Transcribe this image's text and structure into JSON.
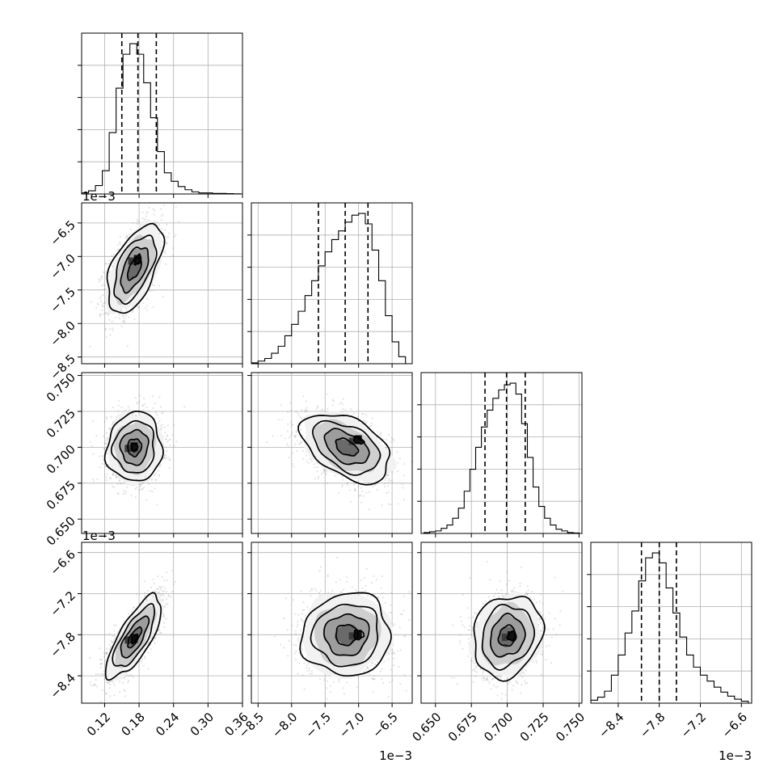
{
  "chart_data": {
    "type": "scatter",
    "variant": "corner",
    "grid": true,
    "quantile_lines": "dashed",
    "parameters": [
      {
        "range": [
          0.08,
          0.36
        ],
        "ticks": [
          0.12,
          0.18,
          0.24,
          0.3,
          0.36
        ],
        "tick_labels": [
          "0.12",
          "0.18",
          "0.24",
          "0.30",
          "0.36"
        ],
        "offset_label": ""
      },
      {
        "range": [
          -8.6,
          -6.2
        ],
        "ticks": [
          -8.5,
          -8.0,
          -7.5,
          -7.0,
          -6.5
        ],
        "tick_labels": [
          "−8.5",
          "−8.0",
          "−7.5",
          "−7.0",
          "−6.5"
        ],
        "offset_label": "1e−3"
      },
      {
        "range": [
          0.64,
          0.752
        ],
        "ticks": [
          0.65,
          0.675,
          0.7,
          0.725,
          0.75
        ],
        "tick_labels": [
          "0.650",
          "0.675",
          "0.700",
          "0.725",
          "0.750"
        ],
        "offset_label": ""
      },
      {
        "range": [
          -8.8,
          -6.45
        ],
        "ticks": [
          -8.4,
          -7.8,
          -7.2,
          -6.6
        ],
        "tick_labels": [
          "−8.4",
          "−7.8",
          "−7.2",
          "−6.6"
        ],
        "offset_label": "1e−3"
      }
    ],
    "marginals": [
      {
        "quantiles": [
          0.15,
          0.178,
          0.21
        ],
        "bin_edges": [
          0.08,
          0.092,
          0.104,
          0.116,
          0.128,
          0.14,
          0.152,
          0.164,
          0.176,
          0.188,
          0.2,
          0.212,
          0.224,
          0.236,
          0.248,
          0.26,
          0.272,
          0.284,
          0.296,
          0.308,
          0.32,
          0.332,
          0.344,
          0.356
        ],
        "counts": [
          1,
          3,
          8,
          22,
          58,
          100,
          132,
          142,
          132,
          105,
          72,
          40,
          20,
          12,
          7,
          4,
          2,
          1,
          1,
          0.5,
          0.5,
          0.3,
          0.2
        ]
      },
      {
        "quantiles": [
          -7.6,
          -7.2,
          -6.86
        ],
        "bin_edges": [
          -8.6,
          -8.5,
          -8.4,
          -8.3,
          -8.2,
          -8.1,
          -8.0,
          -7.9,
          -7.8,
          -7.7,
          -7.6,
          -7.5,
          -7.4,
          -7.3,
          -7.2,
          -7.1,
          -7.0,
          -6.9,
          -6.8,
          -6.7,
          -6.6,
          -6.5,
          -6.4,
          -6.3
        ],
        "counts": [
          1,
          3,
          6,
          12,
          20,
          32,
          45,
          60,
          78,
          95,
          112,
          128,
          142,
          152,
          162,
          170,
          172,
          160,
          130,
          95,
          55,
          25,
          8
        ]
      },
      {
        "quantiles": [
          0.6845,
          0.6995,
          0.7125
        ],
        "bin_edges": [
          0.642,
          0.646,
          0.65,
          0.654,
          0.658,
          0.662,
          0.666,
          0.67,
          0.674,
          0.678,
          0.682,
          0.686,
          0.69,
          0.694,
          0.698,
          0.702,
          0.706,
          0.71,
          0.714,
          0.718,
          0.722,
          0.726,
          0.73,
          0.734,
          0.738,
          0.742,
          0.746,
          0.75
        ],
        "counts": [
          1,
          2,
          3,
          6,
          10,
          18,
          30,
          50,
          76,
          102,
          126,
          146,
          160,
          170,
          176,
          178,
          165,
          130,
          90,
          55,
          32,
          18,
          10,
          5,
          3,
          1,
          0.5
        ]
      },
      {
        "quantiles": [
          -8.06,
          -7.8,
          -7.55
        ],
        "bin_edges": [
          -8.8,
          -8.7,
          -8.6,
          -8.5,
          -8.4,
          -8.3,
          -8.2,
          -8.1,
          -8.0,
          -7.9,
          -7.8,
          -7.7,
          -7.6,
          -7.5,
          -7.4,
          -7.3,
          -7.2,
          -7.1,
          -7.0,
          -6.9,
          -6.8,
          -6.7,
          -6.6,
          -6.5
        ],
        "counts": [
          3,
          6,
          12,
          28,
          48,
          70,
          92,
          122,
          145,
          150,
          140,
          115,
          90,
          66,
          48,
          36,
          28,
          22,
          16,
          11,
          7,
          4,
          2
        ]
      }
    ],
    "pairs": [
      {
        "x": 0,
        "y": 1,
        "center": [
          0.172,
          -7.18
        ],
        "sigma": [
          0.024,
          0.33
        ],
        "rho": 0.55,
        "mode": [
          0.178,
          -7.05
        ]
      },
      {
        "x": 0,
        "y": 2,
        "center": [
          0.172,
          0.7
        ],
        "sigma": [
          0.024,
          0.012
        ],
        "rho": 0.05,
        "mode": [
          0.172,
          0.7
        ]
      },
      {
        "x": 1,
        "y": 2,
        "center": [
          -7.18,
          0.7
        ],
        "sigma": [
          0.33,
          0.012
        ],
        "rho": -0.45,
        "mode": [
          -7.0,
          0.705
        ]
      },
      {
        "x": 0,
        "y": 3,
        "center": [
          0.172,
          -7.84
        ],
        "sigma": [
          0.024,
          0.3
        ],
        "rho": 0.75,
        "mode": [
          0.172,
          -7.86
        ]
      },
      {
        "x": 1,
        "y": 3,
        "center": [
          -7.18,
          -7.8
        ],
        "sigma": [
          0.33,
          0.3
        ],
        "rho": 0.05,
        "mode": [
          -7.0,
          -7.8
        ]
      },
      {
        "x": 2,
        "y": 3,
        "center": [
          0.7,
          -7.82
        ],
        "sigma": [
          0.012,
          0.3
        ],
        "rho": 0.15,
        "mode": [
          0.703,
          -7.82
        ]
      }
    ],
    "contour_levels_sigma": [
      0.5,
      1.0,
      1.5,
      2.0
    ]
  }
}
